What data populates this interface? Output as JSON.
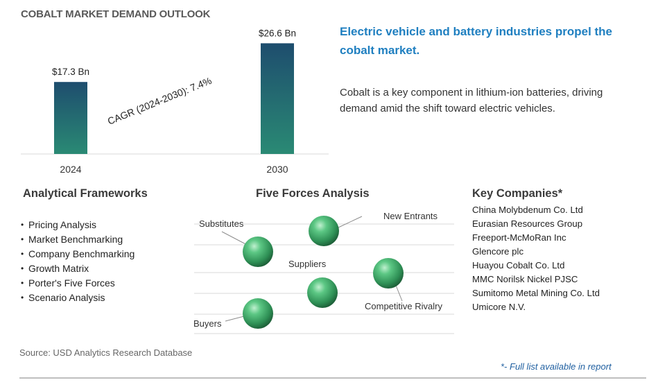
{
  "chart_data": {
    "type": "bar",
    "title": "COBALT MARKET DEMAND OUTLOOK",
    "categories": [
      "2024",
      "2030"
    ],
    "values": [
      17.3,
      26.6
    ],
    "value_labels": [
      "$17.3 Bn",
      "$26.6 Bn"
    ],
    "annotation": "CAGR (2024-2030):  7.4%",
    "ylim": [
      0,
      30
    ],
    "xlabel": "",
    "ylabel": "",
    "grid": false,
    "bar_gradient": [
      "#1e4d6e",
      "#2a8a74"
    ]
  },
  "headline": "Electric vehicle and battery industries propel the cobalt market.",
  "description": "Cobalt is a key component in lithium-ion batteries, driving demand amid the shift toward electric vehicles.",
  "frameworks": {
    "heading": "Analytical Frameworks",
    "items": [
      "Pricing Analysis",
      "Market Benchmarking",
      "Company Benchmarking",
      "Growth Matrix",
      "Porter's Five Forces",
      "Scenario Analysis"
    ]
  },
  "five_forces": {
    "heading": "Five Forces Analysis",
    "forces": [
      "Substitutes",
      "New Entrants",
      "Suppliers",
      "Competitive Rivalry",
      "Buyers"
    ]
  },
  "companies": {
    "heading": "Key Companies*",
    "items": [
      "China Molybdenum Co. Ltd",
      "Eurasian Resources Group",
      "Freeport-McMoRan Inc",
      "Glencore plc",
      "Huayou Cobalt Co. Ltd",
      "MMC Norilsk Nickel PJSC",
      "Sumitomo Metal Mining Co. Ltd",
      "Umicore N.V."
    ]
  },
  "source": "Source: USD Analytics Research Database",
  "footnote": "*- Full list available in report",
  "colors": {
    "headline": "#1f7fc0",
    "sphere": "#2e9d5c",
    "footnote": "#1f5fa0"
  }
}
